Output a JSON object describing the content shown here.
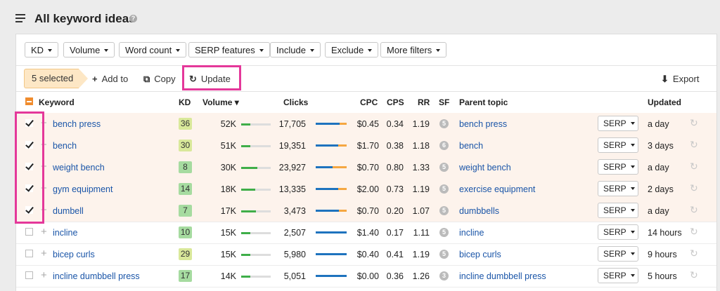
{
  "header": {
    "title": "All keyword ideas",
    "help": "?"
  },
  "filters": [
    {
      "label": "KD"
    },
    {
      "label": "Volume"
    },
    {
      "label": "Word count"
    },
    {
      "label": "SERP features"
    },
    {
      "label": "Include"
    },
    {
      "label": "Exclude"
    },
    {
      "label": "More filters"
    }
  ],
  "actions": {
    "selected": "5 selected",
    "add_to": "Add to",
    "copy": "Copy",
    "update": "Update",
    "export": "Export"
  },
  "columns": {
    "keyword": "Keyword",
    "kd": "KD",
    "volume": "Volume",
    "clicks": "Clicks",
    "cpc": "CPC",
    "cps": "CPS",
    "rr": "RR",
    "sf": "SF",
    "parent": "Parent topic",
    "updated": "Updated"
  },
  "serp_label": "SERP",
  "rows": [
    {
      "selected": true,
      "keyword": "bench press",
      "kd": "36",
      "kd_color": "#d9e89a",
      "volume": "52K",
      "vol_fill": 0.3,
      "clicks": "17,705",
      "clk_blue": 0.78,
      "clk_orange": 0.22,
      "cpc": "$0.45",
      "cps": "0.34",
      "rr": "1.19",
      "sf": "5",
      "parent": "bench press",
      "updated": "a day"
    },
    {
      "selected": true,
      "keyword": "bench",
      "kd": "30",
      "kd_color": "#d9e89a",
      "volume": "51K",
      "vol_fill": 0.3,
      "clicks": "19,351",
      "clk_blue": 0.72,
      "clk_orange": 0.28,
      "cpc": "$1.70",
      "cps": "0.38",
      "rr": "1.18",
      "sf": "6",
      "parent": "bench",
      "updated": "3 days"
    },
    {
      "selected": true,
      "keyword": "weight bench",
      "kd": "8",
      "kd_color": "#a6dba0",
      "volume": "30K",
      "vol_fill": 0.55,
      "clicks": "23,927",
      "clk_blue": 0.55,
      "clk_orange": 0.45,
      "cpc": "$0.70",
      "cps": "0.80",
      "rr": "1.33",
      "sf": "5",
      "parent": "weight bench",
      "updated": "a day"
    },
    {
      "selected": true,
      "keyword": "gym equipment",
      "kd": "14",
      "kd_color": "#a6dba0",
      "volume": "18K",
      "vol_fill": 0.48,
      "clicks": "13,335",
      "clk_blue": 0.72,
      "clk_orange": 0.28,
      "cpc": "$2.00",
      "cps": "0.73",
      "rr": "1.19",
      "sf": "5",
      "parent": "exercise equipment",
      "updated": "2 days"
    },
    {
      "selected": true,
      "keyword": "dumbell",
      "kd": "7",
      "kd_color": "#a6dba0",
      "volume": "17K",
      "vol_fill": 0.5,
      "clicks": "3,473",
      "clk_blue": 0.75,
      "clk_orange": 0.25,
      "cpc": "$0.70",
      "cps": "0.20",
      "rr": "1.07",
      "sf": "5",
      "parent": "dumbbells",
      "updated": "a day"
    },
    {
      "selected": false,
      "keyword": "incline",
      "kd": "10",
      "kd_color": "#a6dba0",
      "volume": "15K",
      "vol_fill": 0.32,
      "clicks": "2,507",
      "clk_blue": 1.0,
      "clk_orange": 0.0,
      "cpc": "$1.40",
      "cps": "0.17",
      "rr": "1.11",
      "sf": "5",
      "parent": "incline",
      "updated": "14 hours"
    },
    {
      "selected": false,
      "keyword": "bicep curls",
      "kd": "29",
      "kd_color": "#d9e89a",
      "volume": "15K",
      "vol_fill": 0.3,
      "clicks": "5,980",
      "clk_blue": 1.0,
      "clk_orange": 0.0,
      "cpc": "$0.40",
      "cps": "0.41",
      "rr": "1.19",
      "sf": "5",
      "parent": "bicep curls",
      "updated": "9 hours"
    },
    {
      "selected": false,
      "keyword": "incline dumbbell press",
      "kd": "17",
      "kd_color": "#a6dba0",
      "volume": "14K",
      "vol_fill": 0.3,
      "clicks": "5,051",
      "clk_blue": 1.0,
      "clk_orange": 0.0,
      "cpc": "$0.00",
      "cps": "0.36",
      "rr": "1.26",
      "sf": "3",
      "parent": "incline dumbbell press",
      "updated": "5 hours"
    }
  ]
}
